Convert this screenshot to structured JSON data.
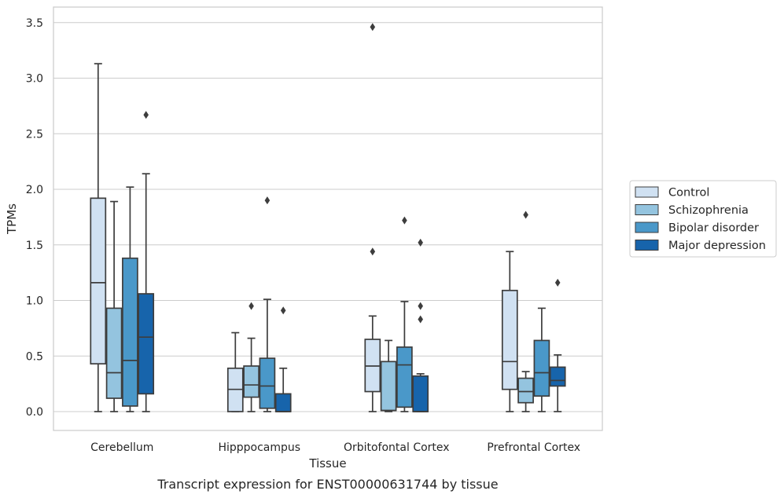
{
  "chart_data": {
    "type": "box",
    "caption": "Transcript expression for ENST00000631744 by tissue",
    "xlabel": "Tissue",
    "ylabel": "TPMs",
    "ylim": [
      -0.17,
      3.65
    ],
    "yticks": [
      "0.0",
      "0.5",
      "1.0",
      "1.5",
      "2.0",
      "2.5",
      "3.0",
      "3.5"
    ],
    "grid": "horizontal",
    "legend_position": "right",
    "categories": [
      "Cerebellum",
      "Hipppocampus",
      "Orbitofontal Cortex",
      "Prefrontal Cortex"
    ],
    "series": [
      {
        "name": "Control",
        "color": "#d0e1f2",
        "boxes": [
          {
            "whislo": 0.0,
            "q1": 0.43,
            "med": 1.16,
            "q3": 1.92,
            "whishi": 3.13,
            "fliers": []
          },
          {
            "whislo": 0.0,
            "q1": 0.0,
            "med": 0.2,
            "q3": 0.39,
            "whishi": 0.71,
            "fliers": []
          },
          {
            "whislo": 0.0,
            "q1": 0.18,
            "med": 0.41,
            "q3": 0.65,
            "whishi": 0.86,
            "fliers": [
              1.44,
              3.46
            ]
          },
          {
            "whislo": 0.0,
            "q1": 0.2,
            "med": 0.45,
            "q3": 1.09,
            "whishi": 1.44,
            "fliers": []
          }
        ]
      },
      {
        "name": "Schizophrenia",
        "color": "#94c4df",
        "boxes": [
          {
            "whislo": 0.0,
            "q1": 0.12,
            "med": 0.35,
            "q3": 0.93,
            "whishi": 1.89,
            "fliers": []
          },
          {
            "whislo": 0.0,
            "q1": 0.13,
            "med": 0.24,
            "q3": 0.41,
            "whishi": 0.66,
            "fliers": [
              0.95
            ]
          },
          {
            "whislo": 0.0,
            "q1": 0.01,
            "med": 0.01,
            "q3": 0.45,
            "whishi": 0.64,
            "fliers": []
          },
          {
            "whislo": 0.0,
            "q1": 0.08,
            "med": 0.18,
            "q3": 0.3,
            "whishi": 0.36,
            "fliers": [
              1.77
            ]
          }
        ]
      },
      {
        "name": "Bipolar disorder",
        "color": "#4a98c9",
        "boxes": [
          {
            "whislo": 0.0,
            "q1": 0.05,
            "med": 0.46,
            "q3": 1.38,
            "whishi": 2.02,
            "fliers": []
          },
          {
            "whislo": 0.0,
            "q1": 0.03,
            "med": 0.23,
            "q3": 0.48,
            "whishi": 1.01,
            "fliers": [
              1.9
            ]
          },
          {
            "whislo": 0.0,
            "q1": 0.04,
            "med": 0.42,
            "q3": 0.58,
            "whishi": 0.99,
            "fliers": [
              1.72
            ]
          },
          {
            "whislo": 0.0,
            "q1": 0.14,
            "med": 0.35,
            "q3": 0.64,
            "whishi": 0.93,
            "fliers": []
          }
        ]
      },
      {
        "name": "Major depression",
        "color": "#1764ab",
        "boxes": [
          {
            "whislo": 0.0,
            "q1": 0.16,
            "med": 0.67,
            "q3": 1.06,
            "whishi": 2.14,
            "fliers": [
              2.67
            ]
          },
          {
            "whislo": 0.0,
            "q1": 0.0,
            "med": 0.0,
            "q3": 0.16,
            "whishi": 0.39,
            "fliers": [
              0.91
            ]
          },
          {
            "whislo": 0.0,
            "q1": 0.0,
            "med": 0.0,
            "q3": 0.32,
            "whishi": 0.34,
            "fliers": [
              0.83,
              0.95,
              1.52
            ]
          },
          {
            "whislo": 0.0,
            "q1": 0.23,
            "med": 0.28,
            "q3": 0.4,
            "whishi": 0.51,
            "fliers": [
              1.16
            ]
          }
        ]
      }
    ]
  }
}
